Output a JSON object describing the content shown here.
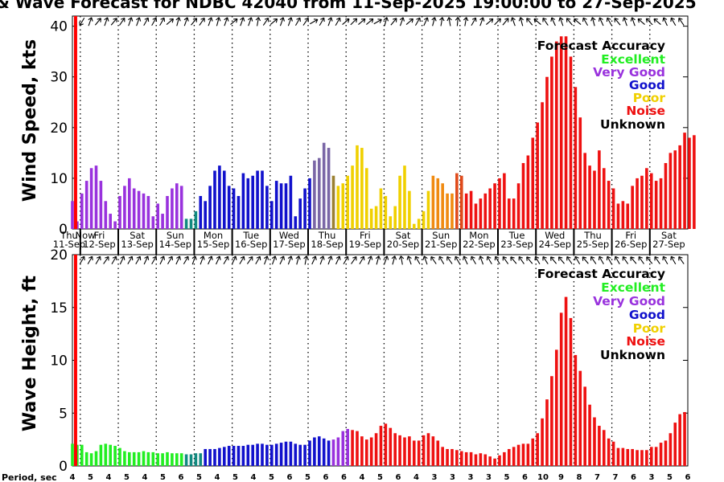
{
  "title": "& Wave Forecast for NDBC 42040 from 11-Sep-2025 19:00:00 to 27-Sep-2025",
  "colors": {
    "excellent": "#22ee22",
    "very_good": "#9932dd",
    "good": "#1111cc",
    "poor": "#f0d000",
    "noise": "#ee1111",
    "unknown": "#000000",
    "now_line": "#ff0000",
    "teal": "#118a80",
    "grey_purple": "#7a66a6",
    "olive": "#9a8030",
    "orange": "#f08a10",
    "dark_orange": "#e04a1a"
  },
  "legend": {
    "title": "Forecast Accuracy",
    "items": [
      {
        "label": "Excellent",
        "color_key": "excellent"
      },
      {
        "label": "Very Good",
        "color_key": "very_good"
      },
      {
        "label": "Good",
        "color_key": "good"
      },
      {
        "label": "Poor",
        "color_key": "poor"
      },
      {
        "label": "Noise",
        "color_key": "noise"
      },
      {
        "label": "Unknown",
        "color_key": "unknown"
      }
    ]
  },
  "day_labels": [
    {
      "day": "Thu",
      "date": "11-Sep"
    },
    {
      "day": "Fri",
      "date": "12-Sep"
    },
    {
      "day": "Sat",
      "date": "13-Sep"
    },
    {
      "day": "Sun",
      "date": "14-Sep"
    },
    {
      "day": "Mon",
      "date": "15-Sep"
    },
    {
      "day": "Tue",
      "date": "16-Sep"
    },
    {
      "day": "Wed",
      "date": "17-Sep"
    },
    {
      "day": "Thu",
      "date": "18-Sep"
    },
    {
      "day": "Fri",
      "date": "19-Sep"
    },
    {
      "day": "Sat",
      "date": "20-Sep"
    },
    {
      "day": "Sun",
      "date": "21-Sep"
    },
    {
      "day": "Mon",
      "date": "22-Sep"
    },
    {
      "day": "Tue",
      "date": "23-Sep"
    },
    {
      "day": "Wed",
      "date": "24-Sep"
    },
    {
      "day": "Thu",
      "date": "25-Sep"
    },
    {
      "day": "Fri",
      "date": "26-Sep"
    },
    {
      "day": "Sat",
      "date": "27-Sep"
    }
  ],
  "now_label": "Now",
  "period_label": "Period, sec",
  "periods": [
    "4",
    "5",
    "4",
    "5",
    "4",
    "5",
    "6",
    "5",
    "4",
    "5",
    "4",
    "5",
    "6",
    "5",
    "6",
    "6",
    "4",
    "5",
    "6",
    "4",
    "3",
    "3",
    "3",
    "3",
    "5",
    "6",
    "10",
    "9",
    "8",
    "7",
    "7",
    "6",
    "3",
    "5",
    "6"
  ],
  "chart_data": [
    {
      "type": "bar",
      "title": "Wind Speed",
      "ylabel": "Wind Speed, kts",
      "ylim": [
        0,
        42
      ],
      "yticks": [
        "0",
        "10",
        "20",
        "30",
        "40"
      ],
      "x_range_hours": [
        0,
        389
      ],
      "bar_interval_hours": 3,
      "now_hour": 2,
      "groups": [
        {
          "color_key": "very_good",
          "start": 0,
          "values": [
            5.5,
            1.5,
            7,
            9.5,
            12,
            12.5,
            9.5,
            5.5,
            3,
            1.5,
            6.5,
            8.5,
            10,
            8,
            7.5,
            7,
            6.5,
            2.5,
            5,
            3,
            6.5,
            8,
            9,
            8.5
          ]
        },
        {
          "color_key": "teal",
          "start": 72,
          "values": [
            2,
            2,
            3.5
          ]
        },
        {
          "color_key": "good",
          "start": 81,
          "values": [
            6.5,
            5.5,
            8.5,
            11.5,
            12.5,
            11.5,
            8.5,
            8,
            6.5,
            11,
            10,
            10.5,
            11.5,
            11.5,
            8.5,
            5.5,
            9.5,
            9,
            9,
            10.5,
            2.5,
            6,
            8,
            10
          ]
        },
        {
          "color_key": "grey_purple",
          "start": 153,
          "values": [
            13.5,
            14,
            17,
            16
          ]
        },
        {
          "color_key": "olive",
          "start": 165,
          "values": [
            10.5
          ]
        },
        {
          "color_key": "poor",
          "start": 168,
          "values": [
            8.5,
            9,
            10.5,
            12.5,
            16.5,
            16,
            12,
            4,
            4.5,
            8,
            6.5,
            2.5,
            4.5,
            10.5,
            12.5,
            7.5,
            1,
            2,
            3.5,
            7.5
          ]
        },
        {
          "color_key": "orange",
          "start": 228,
          "values": [
            10.5,
            10,
            9,
            7,
            7
          ]
        },
        {
          "color_key": "dark_orange",
          "start": 243,
          "values": [
            11,
            10.5
          ]
        },
        {
          "color_key": "noise",
          "start": 249,
          "values": [
            7,
            7.5,
            5,
            6,
            7,
            8,
            9,
            10,
            11,
            6,
            6,
            9,
            13,
            14.5,
            18,
            21,
            25,
            30,
            34,
            37,
            38,
            38,
            34,
            28,
            22,
            15,
            12.5,
            11.5,
            15.5,
            12,
            9.5,
            8,
            5,
            5.5,
            5,
            8.5,
            10,
            10.5,
            12,
            11,
            9.5,
            10,
            13,
            15,
            15.5,
            16.5,
            19,
            18,
            18.5
          ]
        }
      ],
      "direction_arrows_deg": [
        30,
        200,
        220,
        200,
        220,
        215,
        200,
        200,
        210,
        210,
        210,
        230,
        195,
        200,
        220,
        215,
        200,
        195,
        200,
        230,
        200,
        200,
        190,
        215,
        230,
        200,
        200,
        210,
        215,
        240,
        210,
        200,
        210,
        230,
        225,
        230,
        230,
        240,
        195,
        220,
        200,
        230,
        210,
        205,
        195,
        190,
        170,
        185,
        190,
        210,
        200,
        230,
        225,
        220,
        160,
        165,
        140,
        130,
        145,
        155,
        160,
        140,
        130,
        150,
        165,
        155,
        150,
        140,
        160,
        160,
        130,
        135,
        130,
        155,
        150,
        145
      ]
    },
    {
      "type": "bar",
      "title": "Wave Height",
      "ylabel": "Wave Height, ft",
      "ylim": [
        0,
        20
      ],
      "yticks": [
        "0",
        "5",
        "10",
        "15",
        "20"
      ],
      "x_range_hours": [
        0,
        389
      ],
      "bar_interval_hours": 3,
      "now_hour": 2,
      "groups": [
        {
          "color_key": "excellent",
          "start": 0,
          "values": [
            2.1,
            2,
            2,
            1.3,
            1.2,
            1.4,
            2,
            2.1,
            2,
            1.9,
            1.7,
            1.4,
            1.3,
            1.3,
            1.3,
            1.4,
            1.3,
            1.3,
            1.2,
            1.2,
            1.3,
            1.2,
            1.2,
            1.2
          ]
        },
        {
          "color_key": "teal",
          "start": 72,
          "values": [
            1.1,
            1.1,
            1.2,
            1.2
          ]
        },
        {
          "color_key": "good",
          "start": 84,
          "values": [
            1.6,
            1.6,
            1.6,
            1.7,
            1.8,
            1.9,
            1.9,
            1.9,
            1.9,
            2,
            2,
            2.1,
            2.1,
            2,
            2,
            2.1,
            2.2,
            2.3,
            2.3,
            2.1,
            2,
            2,
            2.4,
            2.7,
            2.8,
            2.6,
            2.4
          ]
        },
        {
          "color_key": "very_good",
          "start": 165,
          "values": [
            2.5,
            2.7,
            3.3,
            3.5
          ]
        },
        {
          "color_key": "noise",
          "start": 177,
          "values": [
            3.4,
            3.3,
            2.8,
            2.5,
            2.7,
            3.1,
            3.8,
            4,
            3.6,
            3.1,
            2.9,
            2.7,
            2.8,
            2.4,
            2.4,
            2.9,
            3.1,
            2.8,
            2.4,
            1.8,
            1.6,
            1.6,
            1.5,
            1.4,
            1.3,
            1.3,
            1.1,
            1.2,
            1.1,
            0.9,
            0.7,
            1,
            1.3,
            1.6,
            1.8,
            2,
            2.1,
            2.1,
            2.6,
            3.1,
            4.5,
            6.3,
            8.5,
            11,
            14.5,
            16,
            14,
            10.5,
            9,
            7.5,
            5.8,
            4.6,
            3.8,
            3.4,
            2.6,
            2.3,
            1.7,
            1.7,
            1.6,
            1.6,
            1.5,
            1.5,
            1.5,
            1.8,
            1.8,
            2.2,
            2.4,
            3.1,
            4.1,
            4.9,
            5.1
          ]
        }
      ],
      "direction_arrows_deg": [
        210,
        210,
        210,
        215,
        210,
        205,
        210,
        210,
        205,
        210,
        205,
        210,
        205,
        210,
        200,
        200,
        205,
        205,
        210,
        205,
        210,
        215,
        210,
        200,
        200,
        205,
        200,
        195,
        190,
        205,
        200,
        200,
        205,
        210,
        215,
        210,
        200,
        195,
        200,
        195,
        170,
        160,
        150,
        160,
        145,
        150,
        145,
        150,
        155,
        150,
        160,
        150,
        150,
        145,
        140,
        145,
        140,
        150,
        145,
        140,
        140,
        145,
        150,
        140,
        145,
        150,
        150,
        150,
        145,
        140,
        145,
        140,
        145,
        150,
        150,
        145
      ]
    }
  ]
}
